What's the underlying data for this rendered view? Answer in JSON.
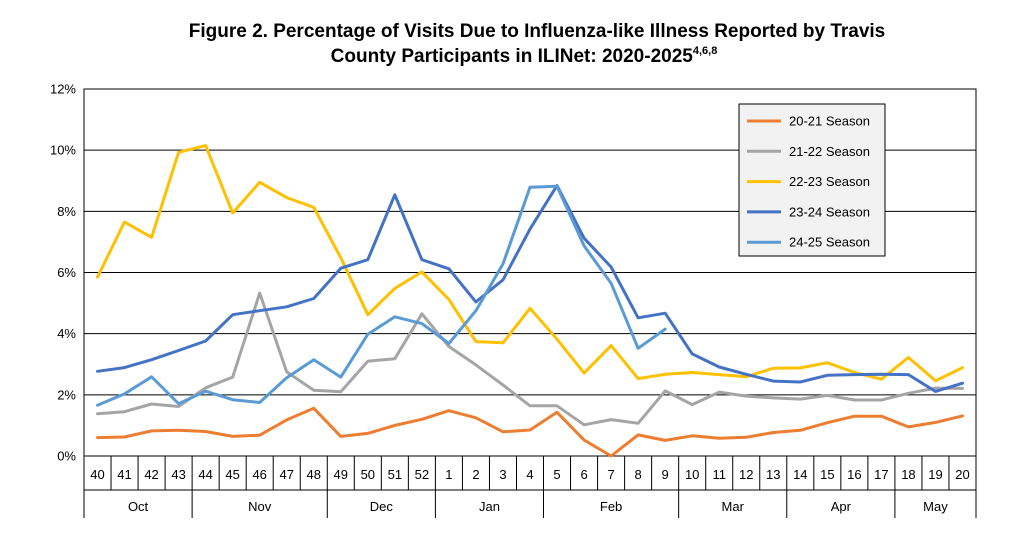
{
  "chart_data": {
    "type": "line",
    "title_line1": "Figure 2.  Percentage of Visits Due to Influenza-like Illness Reported by Travis",
    "title_line2": "County Participants in ILINet: 2020-2025",
    "title_superscript": "4,6,8",
    "y_ticks": [
      "0%",
      "2%",
      "4%",
      "6%",
      "8%",
      "10%",
      "12%"
    ],
    "ylim": [
      0,
      12
    ],
    "weeks": [
      "40",
      "41",
      "42",
      "43",
      "44",
      "45",
      "46",
      "47",
      "48",
      "49",
      "50",
      "51",
      "52",
      "1",
      "2",
      "3",
      "4",
      "5",
      "6",
      "7",
      "8",
      "9",
      "10",
      "11",
      "12",
      "13",
      "14",
      "15",
      "16",
      "17",
      "18",
      "19",
      "20"
    ],
    "months": [
      {
        "label": "Oct",
        "start": 0,
        "end": 3
      },
      {
        "label": "Nov",
        "start": 4,
        "end": 8
      },
      {
        "label": "Dec",
        "start": 9,
        "end": 12
      },
      {
        "label": "Jan",
        "start": 13,
        "end": 16
      },
      {
        "label": "Feb",
        "start": 17,
        "end": 21
      },
      {
        "label": "Mar",
        "start": 22,
        "end": 25
      },
      {
        "label": "Apr",
        "start": 26,
        "end": 29
      },
      {
        "label": "May",
        "start": 30,
        "end": 32
      }
    ],
    "grid": true,
    "legend_position": "top-right",
    "series": [
      {
        "name": "20-21 Season",
        "color": "#ED7D31",
        "values": [
          0.6,
          0.62,
          0.82,
          0.84,
          0.8,
          0.64,
          0.68,
          1.18,
          1.56,
          0.64,
          0.74,
          1.0,
          1.2,
          1.48,
          1.25,
          0.79,
          0.85,
          1.43,
          0.52,
          0.0,
          0.69,
          0.51,
          0.66,
          0.58,
          0.61,
          0.77,
          0.84,
          1.09,
          1.3,
          1.3,
          0.95,
          1.1,
          1.31
        ]
      },
      {
        "name": "21-22 Season",
        "color": "#A5A5A5",
        "values": [
          1.38,
          1.45,
          1.7,
          1.62,
          2.23,
          2.58,
          5.33,
          2.75,
          2.15,
          2.1,
          3.1,
          3.18,
          4.65,
          3.58,
          2.98,
          2.32,
          1.64,
          1.64,
          1.02,
          1.19,
          1.07,
          2.13,
          1.68,
          2.09,
          1.96,
          1.9,
          1.86,
          1.98,
          1.83,
          1.83,
          2.05,
          2.22,
          2.21
        ]
      },
      {
        "name": "22-23 Season",
        "color": "#FFC000",
        "values": [
          5.85,
          7.65,
          7.15,
          9.93,
          10.15,
          7.95,
          8.95,
          8.45,
          8.13,
          6.48,
          4.62,
          5.48,
          6.02,
          5.12,
          3.74,
          3.7,
          4.83,
          3.82,
          2.71,
          3.61,
          2.53,
          2.67,
          2.73,
          2.66,
          2.59,
          2.87,
          2.88,
          3.05,
          2.73,
          2.51,
          3.22,
          2.46,
          2.89
        ]
      },
      {
        "name": "23-24 Season",
        "color": "#4472C4",
        "values": [
          2.77,
          2.89,
          3.15,
          3.45,
          3.76,
          4.62,
          4.75,
          4.88,
          5.15,
          6.14,
          6.42,
          8.54,
          6.42,
          6.12,
          5.04,
          5.76,
          7.42,
          8.84,
          7.12,
          6.18,
          4.52,
          4.67,
          3.34,
          2.91,
          2.67,
          2.45,
          2.42,
          2.64,
          2.66,
          2.67,
          2.66,
          2.11,
          2.38
        ]
      },
      {
        "name": "24-25 Season",
        "color": "#5B9BD5",
        "values": [
          1.66,
          2.03,
          2.59,
          1.71,
          2.12,
          1.84,
          1.75,
          2.56,
          3.15,
          2.58,
          3.98,
          4.55,
          4.33,
          3.68,
          4.75,
          6.28,
          8.79,
          8.82,
          6.87,
          5.65,
          3.52,
          4.15,
          null,
          null,
          null,
          null,
          null,
          null,
          null,
          null,
          null,
          null,
          null
        ]
      }
    ]
  }
}
